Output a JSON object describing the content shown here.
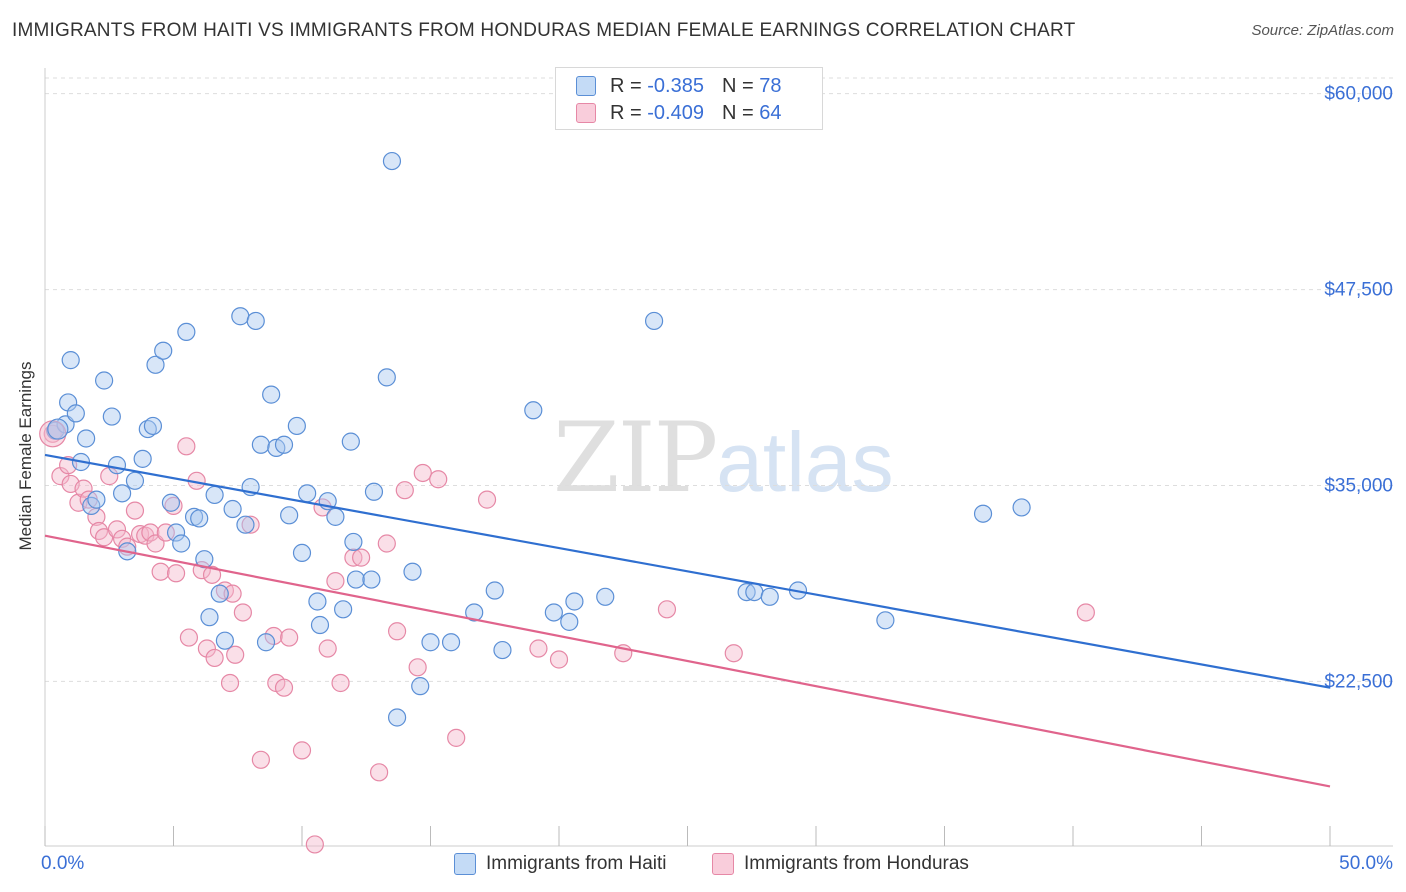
{
  "title": "IMMIGRANTS FROM HAITI VS IMMIGRANTS FROM HONDURAS MEDIAN FEMALE EARNINGS CORRELATION CHART",
  "source": "Source: ZipAtlas.com",
  "watermark": {
    "zip": "ZIP",
    "atlas": "atlas"
  },
  "stats": [
    {
      "r_label": "R =",
      "r_value": "-0.385",
      "n_label": "N =",
      "n_value": "78"
    },
    {
      "r_label": "R =",
      "r_value": "-0.409",
      "n_label": "N =",
      "n_value": "64"
    }
  ],
  "legend": [
    {
      "label": "Immigrants from Haiti"
    },
    {
      "label": "Immigrants from Honduras"
    }
  ],
  "colors": {
    "haiti_fill": "#a9c8ef",
    "haiti_stroke": "#5b8fd6",
    "haiti_line": "#2f6fd0",
    "honduras_fill": "#f4b8cb",
    "honduras_stroke": "#e688a6",
    "honduras_line": "#e0648c",
    "tick_label": "#3a6fd6",
    "grid": "#dddddd"
  },
  "chart_data": {
    "type": "scatter",
    "title": "IMMIGRANTS FROM HAITI VS IMMIGRANTS FROM HONDURAS MEDIAN FEMALE EARNINGS CORRELATION CHART",
    "xlabel": "",
    "ylabel": "Median Female Earnings",
    "xlim": [
      0,
      50
    ],
    "ylim": [
      12000,
      61000
    ],
    "x_tick_labels": [
      "0.0%",
      "50.0%"
    ],
    "y_ticks": [
      22500,
      35000,
      47500,
      60000
    ],
    "y_tick_labels": [
      "$22,500",
      "$35,000",
      "$47,500",
      "$60,000"
    ],
    "grid": true,
    "series": [
      {
        "name": "Immigrants from Haiti",
        "trend": {
          "x": [
            0,
            50
          ],
          "y": [
            36950,
            22100
          ]
        },
        "points": [
          [
            0.4,
            38500
          ],
          [
            0.8,
            38900
          ],
          [
            0.9,
            40300
          ],
          [
            1.0,
            43000
          ],
          [
            1.2,
            39600
          ],
          [
            1.4,
            36500
          ],
          [
            1.6,
            38000
          ],
          [
            1.8,
            33700
          ],
          [
            2.0,
            34100
          ],
          [
            2.3,
            41700
          ],
          [
            2.6,
            39400
          ],
          [
            2.8,
            36300
          ],
          [
            3.0,
            34500
          ],
          [
            3.2,
            30800
          ],
          [
            3.5,
            35300
          ],
          [
            3.8,
            36700
          ],
          [
            4.0,
            38600
          ],
          [
            4.2,
            38800
          ],
          [
            4.3,
            42700
          ],
          [
            4.6,
            43600
          ],
          [
            4.9,
            33900
          ],
          [
            5.1,
            32000
          ],
          [
            5.3,
            31300
          ],
          [
            5.5,
            44800
          ],
          [
            5.8,
            33000
          ],
          [
            6.0,
            32900
          ],
          [
            6.2,
            30300
          ],
          [
            6.4,
            26600
          ],
          [
            6.6,
            34400
          ],
          [
            6.8,
            28100
          ],
          [
            7.0,
            25100
          ],
          [
            7.3,
            33500
          ],
          [
            7.6,
            45800
          ],
          [
            7.8,
            32500
          ],
          [
            8.0,
            34900
          ],
          [
            8.2,
            45500
          ],
          [
            8.4,
            37600
          ],
          [
            8.6,
            25000
          ],
          [
            8.8,
            40800
          ],
          [
            9.0,
            37400
          ],
          [
            9.3,
            37600
          ],
          [
            9.5,
            33100
          ],
          [
            9.8,
            38800
          ],
          [
            10.0,
            30700
          ],
          [
            10.2,
            34500
          ],
          [
            10.6,
            27600
          ],
          [
            10.7,
            26100
          ],
          [
            11.0,
            34000
          ],
          [
            11.3,
            33000
          ],
          [
            11.6,
            27100
          ],
          [
            11.9,
            37800
          ],
          [
            12.0,
            31400
          ],
          [
            12.1,
            29000
          ],
          [
            12.7,
            29000
          ],
          [
            12.8,
            34600
          ],
          [
            13.3,
            41900
          ],
          [
            13.5,
            55700
          ],
          [
            13.7,
            20200
          ],
          [
            14.3,
            29500
          ],
          [
            14.6,
            22200
          ],
          [
            15.0,
            25000
          ],
          [
            15.8,
            25000
          ],
          [
            16.7,
            26900
          ],
          [
            17.5,
            28300
          ],
          [
            17.8,
            24500
          ],
          [
            19.0,
            39800
          ],
          [
            19.8,
            26900
          ],
          [
            20.4,
            26300
          ],
          [
            20.6,
            27600
          ],
          [
            21.8,
            27900
          ],
          [
            23.7,
            45500
          ],
          [
            27.3,
            28200
          ],
          [
            27.6,
            28200
          ],
          [
            28.2,
            27900
          ],
          [
            29.3,
            28300
          ],
          [
            32.7,
            26400
          ],
          [
            38.0,
            33600
          ],
          [
            36.5,
            33200
          ]
        ]
      },
      {
        "name": "Immigrants from Honduras",
        "trend": {
          "x": [
            0,
            50
          ],
          "y": [
            31800,
            15800
          ]
        },
        "points": [
          [
            0.3,
            38300
          ],
          [
            0.6,
            35600
          ],
          [
            0.9,
            36300
          ],
          [
            1.0,
            35100
          ],
          [
            1.3,
            33900
          ],
          [
            1.5,
            34800
          ],
          [
            1.7,
            34100
          ],
          [
            2.0,
            33000
          ],
          [
            2.1,
            32100
          ],
          [
            2.3,
            31700
          ],
          [
            2.5,
            35600
          ],
          [
            2.8,
            32200
          ],
          [
            3.0,
            31600
          ],
          [
            3.2,
            31100
          ],
          [
            3.5,
            33400
          ],
          [
            3.7,
            31900
          ],
          [
            3.9,
            31800
          ],
          [
            4.1,
            32000
          ],
          [
            4.3,
            31300
          ],
          [
            4.5,
            29500
          ],
          [
            4.7,
            32000
          ],
          [
            5.0,
            33700
          ],
          [
            5.1,
            29400
          ],
          [
            5.5,
            37500
          ],
          [
            5.6,
            25300
          ],
          [
            5.9,
            35300
          ],
          [
            6.1,
            29600
          ],
          [
            6.3,
            24600
          ],
          [
            6.5,
            29300
          ],
          [
            6.6,
            24000
          ],
          [
            7.0,
            28300
          ],
          [
            7.2,
            22400
          ],
          [
            7.4,
            24200
          ],
          [
            7.7,
            26900
          ],
          [
            8.0,
            32500
          ],
          [
            8.4,
            17500
          ],
          [
            8.9,
            25400
          ],
          [
            9.0,
            22400
          ],
          [
            9.3,
            22100
          ],
          [
            9.5,
            25300
          ],
          [
            10.0,
            18100
          ],
          [
            10.5,
            12100
          ],
          [
            11.0,
            24600
          ],
          [
            11.3,
            28900
          ],
          [
            11.5,
            22400
          ],
          [
            12.0,
            30400
          ],
          [
            12.3,
            30400
          ],
          [
            13.0,
            16700
          ],
          [
            13.3,
            31300
          ],
          [
            13.7,
            25700
          ],
          [
            14.0,
            34700
          ],
          [
            14.5,
            23400
          ],
          [
            14.7,
            35800
          ],
          [
            15.3,
            35400
          ],
          [
            16.0,
            18900
          ],
          [
            17.2,
            34100
          ],
          [
            19.2,
            24600
          ],
          [
            20.0,
            23900
          ],
          [
            22.5,
            24300
          ],
          [
            24.2,
            27100
          ],
          [
            26.8,
            24300
          ],
          [
            40.5,
            26900
          ],
          [
            7.3,
            28100
          ],
          [
            10.8,
            33600
          ]
        ]
      }
    ]
  }
}
